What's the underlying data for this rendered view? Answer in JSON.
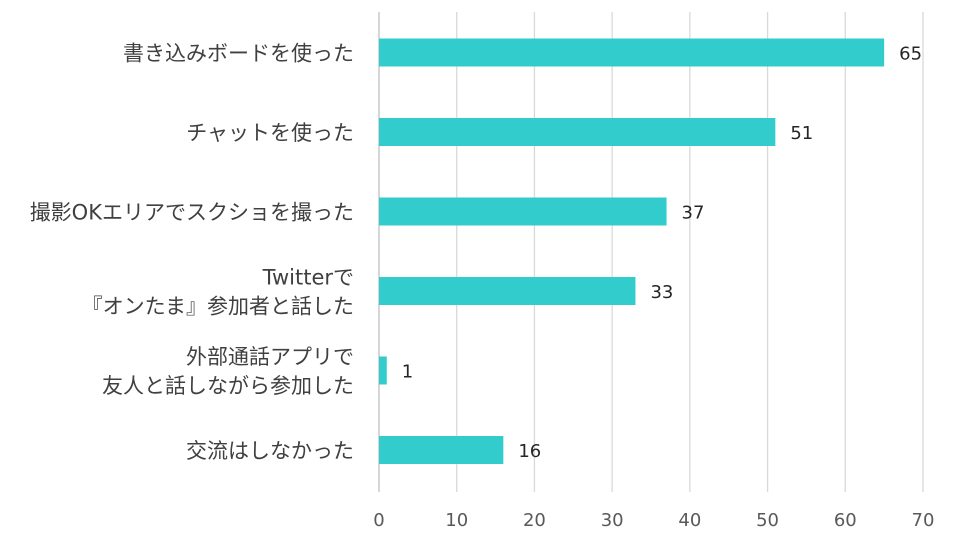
{
  "chart_data": {
    "type": "bar",
    "orientation": "horizontal",
    "categories": [
      [
        "書き込みボードを使った"
      ],
      [
        "チャットを使った"
      ],
      [
        "撮影OKエリアでスクショを撮った"
      ],
      [
        "Twitterで",
        "『オンたま』参加者と話した"
      ],
      [
        "外部通話アプリで",
        "友人と話しながら参加した"
      ],
      [
        "交流はしなかった"
      ]
    ],
    "values": [
      65,
      51,
      37,
      33,
      1,
      16
    ],
    "xlim": [
      0,
      70
    ],
    "xticks": [
      0,
      10,
      20,
      30,
      40,
      50,
      60,
      70
    ],
    "grid": true,
    "data_labels": true,
    "bar_color": "#33CCCC"
  }
}
